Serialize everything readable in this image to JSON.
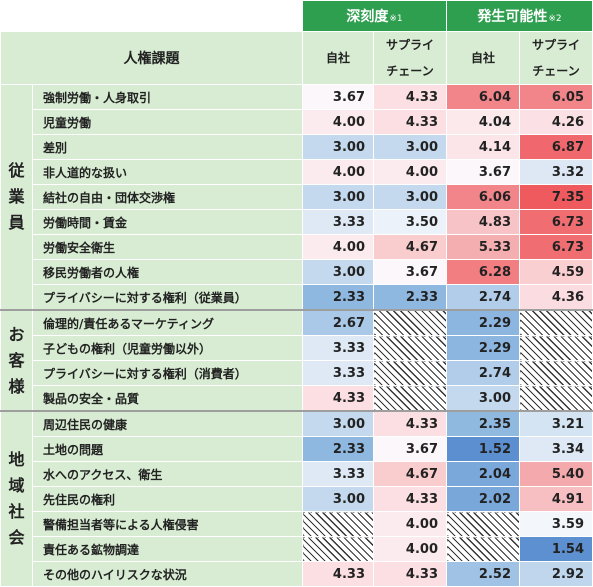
{
  "header": {
    "table_title": "人権課題",
    "groups": [
      {
        "label": "深刻度",
        "note": "※1"
      },
      {
        "label": "発生可能性",
        "note": "※2"
      }
    ],
    "sub_columns": [
      {
        "l1": "自社",
        "l2": ""
      },
      {
        "l1": "サプライ",
        "l2": "チェーン"
      },
      {
        "l1": "自社",
        "l2": ""
      },
      {
        "l1": "サプライ",
        "l2": "チェーン"
      }
    ]
  },
  "categories": [
    {
      "label": "従\n業\n員",
      "rows": [
        {
          "issue": "強制労働・人身取引",
          "cells": [
            {
              "v": "3.67",
              "bg": "#fbf7fb"
            },
            {
              "v": "4.33",
              "bg": "#fbdfe3"
            },
            {
              "v": "6.04",
              "bg": "#f18589"
            },
            {
              "v": "6.05",
              "bg": "#f18589"
            }
          ]
        },
        {
          "issue": "児童労働",
          "cells": [
            {
              "v": "4.00",
              "bg": "#fbebee"
            },
            {
              "v": "4.33",
              "bg": "#fbdfe3"
            },
            {
              "v": "4.04",
              "bg": "#fbe9ec"
            },
            {
              "v": "4.26",
              "bg": "#fbe1e5"
            }
          ]
        },
        {
          "issue": "差別",
          "cells": [
            {
              "v": "3.00",
              "bg": "#c4d9ee"
            },
            {
              "v": "3.00",
              "bg": "#c4d9ee"
            },
            {
              "v": "4.14",
              "bg": "#fbe5e8"
            },
            {
              "v": "6.87",
              "bg": "#f0686d"
            }
          ]
        },
        {
          "issue": "非人道的な扱い",
          "cells": [
            {
              "v": "4.00",
              "bg": "#fbebee"
            },
            {
              "v": "4.00",
              "bg": "#fbebee"
            },
            {
              "v": "3.67",
              "bg": "#fbf7fb"
            },
            {
              "v": "3.32",
              "bg": "#dde8f4"
            }
          ]
        },
        {
          "issue": "結社の自由・団体交渉権",
          "cells": [
            {
              "v": "3.00",
              "bg": "#c4d9ee"
            },
            {
              "v": "3.00",
              "bg": "#c4d9ee"
            },
            {
              "v": "6.06",
              "bg": "#f18589"
            },
            {
              "v": "7.35",
              "bg": "#ee5a5e"
            }
          ]
        },
        {
          "issue": "労働時間・賃金",
          "cells": [
            {
              "v": "3.33",
              "bg": "#dee9f5"
            },
            {
              "v": "3.50",
              "bg": "#ecf2f9"
            },
            {
              "v": "4.83",
              "bg": "#f8c3c6"
            },
            {
              "v": "6.73",
              "bg": "#f06d72"
            }
          ]
        },
        {
          "issue": "労働安全衛生",
          "cells": [
            {
              "v": "4.00",
              "bg": "#fbebee"
            },
            {
              "v": "4.67",
              "bg": "#f9ccce"
            },
            {
              "v": "5.33",
              "bg": "#f5aeb0"
            },
            {
              "v": "6.73",
              "bg": "#f06d72"
            }
          ]
        },
        {
          "issue": "移民労働者の人権",
          "cells": [
            {
              "v": "3.00",
              "bg": "#c4d9ee"
            },
            {
              "v": "3.67",
              "bg": "#fbf7fb"
            },
            {
              "v": "6.28",
              "bg": "#f27e82"
            },
            {
              "v": "4.59",
              "bg": "#facfd2"
            }
          ]
        },
        {
          "issue": "プライバシーに対する権利（従業員）",
          "cells": [
            {
              "v": "2.33",
              "bg": "#8fb8e0"
            },
            {
              "v": "2.33",
              "bg": "#8fb8e0"
            },
            {
              "v": "2.74",
              "bg": "#b1cde9"
            },
            {
              "v": "4.36",
              "bg": "#fbdde1"
            }
          ]
        }
      ]
    },
    {
      "label": "お\n客\n様",
      "rows": [
        {
          "issue": "倫理的/責任あるマーケティング",
          "cells": [
            {
              "v": "2.67",
              "bg": "#aac8e7"
            },
            {
              "v": "",
              "bg": "hatch"
            },
            {
              "v": "2.29",
              "bg": "#8cb5df"
            },
            {
              "v": "",
              "bg": "hatch"
            }
          ]
        },
        {
          "issue": "子どもの権利（児童労働以外）",
          "cells": [
            {
              "v": "3.33",
              "bg": "#dee9f5"
            },
            {
              "v": "",
              "bg": "hatch"
            },
            {
              "v": "2.29",
              "bg": "#8cb5df"
            },
            {
              "v": "",
              "bg": "hatch"
            }
          ]
        },
        {
          "issue": "プライバシーに対する権利（消費者）",
          "cells": [
            {
              "v": "3.33",
              "bg": "#dee9f5"
            },
            {
              "v": "",
              "bg": "hatch"
            },
            {
              "v": "2.74",
              "bg": "#b1cde9"
            },
            {
              "v": "",
              "bg": "hatch"
            }
          ]
        },
        {
          "issue": "製品の安全・品質",
          "cells": [
            {
              "v": "4.33",
              "bg": "#fbdfe3"
            },
            {
              "v": "",
              "bg": "hatch"
            },
            {
              "v": "3.00",
              "bg": "#c4d9ee"
            },
            {
              "v": "",
              "bg": "hatch"
            }
          ]
        }
      ]
    },
    {
      "label": "地\n域\n社\n会",
      "rows": [
        {
          "issue": "周辺住民の健康",
          "cells": [
            {
              "v": "3.00",
              "bg": "#c4d9ee"
            },
            {
              "v": "4.33",
              "bg": "#fbdfe3"
            },
            {
              "v": "2.35",
              "bg": "#90b9e0"
            },
            {
              "v": "3.21",
              "bg": "#d5e4f2"
            }
          ]
        },
        {
          "issue": "土地の問題",
          "cells": [
            {
              "v": "2.33",
              "bg": "#8fb8e0"
            },
            {
              "v": "3.67",
              "bg": "#fbf7fb"
            },
            {
              "v": "1.52",
              "bg": "#5b8fd0"
            },
            {
              "v": "3.34",
              "bg": "#dee9f5"
            }
          ]
        },
        {
          "issue": "水へのアクセス、衛生",
          "cells": [
            {
              "v": "3.33",
              "bg": "#dee9f5"
            },
            {
              "v": "4.67",
              "bg": "#f9ccce"
            },
            {
              "v": "2.04",
              "bg": "#7aa8da"
            },
            {
              "v": "5.40",
              "bg": "#f4a9ac"
            }
          ]
        },
        {
          "issue": "先住民の権利",
          "cells": [
            {
              "v": "3.00",
              "bg": "#c4d9ee"
            },
            {
              "v": "4.33",
              "bg": "#fbdfe3"
            },
            {
              "v": "2.02",
              "bg": "#79a7d9"
            },
            {
              "v": "4.91",
              "bg": "#f7bfc2"
            }
          ]
        },
        {
          "issue": "警備担当者等による人権侵害",
          "cells": [
            {
              "v": "",
              "bg": "hatch"
            },
            {
              "v": "4.00",
              "bg": "#fbebee"
            },
            {
              "v": "",
              "bg": "hatch"
            },
            {
              "v": "3.59",
              "bg": "#f3f6fb"
            }
          ]
        },
        {
          "issue": "責任ある鉱物調達",
          "cells": [
            {
              "v": "",
              "bg": "hatch"
            },
            {
              "v": "4.00",
              "bg": "#fbebee"
            },
            {
              "v": "",
              "bg": "hatch"
            },
            {
              "v": "1.54",
              "bg": "#5c90d0"
            }
          ]
        },
        {
          "issue": "その他のハイリスクな状況",
          "cells": [
            {
              "v": "4.33",
              "bg": "#fbdfe3"
            },
            {
              "v": "4.33",
              "bg": "#fbdfe3"
            },
            {
              "v": "2.52",
              "bg": "#a0c2e4"
            },
            {
              "v": "2.92",
              "bg": "#bfd6ec"
            }
          ]
        }
      ]
    }
  ]
}
